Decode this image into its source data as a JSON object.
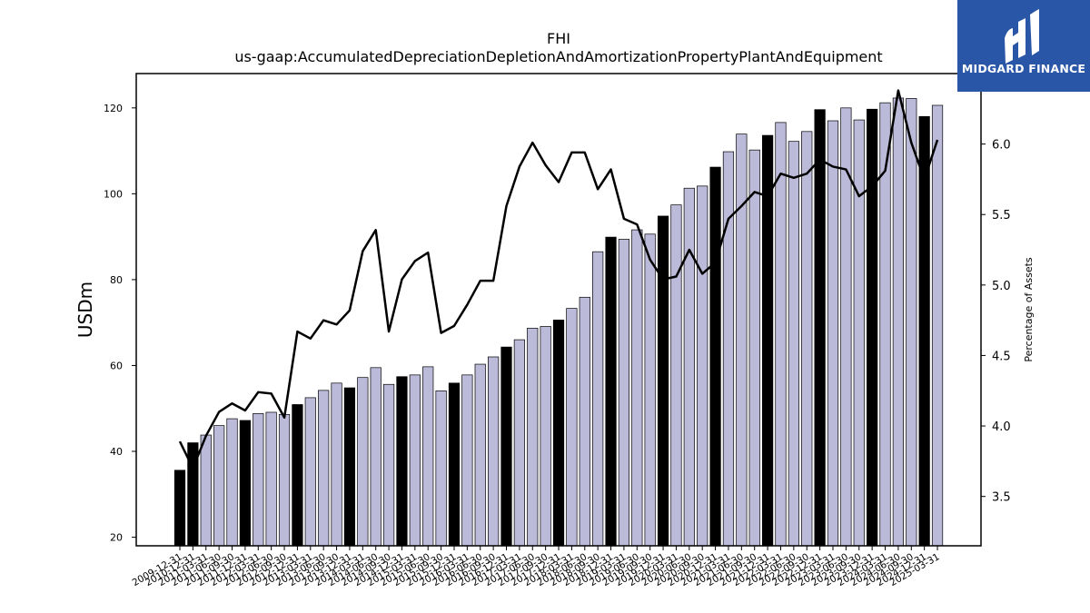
{
  "logo": {
    "text": "MIDGARD FINANCE"
  },
  "chart_data": {
    "type": "bar+line",
    "title": "FHI",
    "subtitle": "us-gaap:AccumulatedDepreciationDepletionAndAmortizationPropertyPlantAndEquipment",
    "ylabel": "USDm",
    "y2label": "Percentage of Assets",
    "ylim": [
      18,
      128
    ],
    "y2lim": [
      3.15,
      6.5
    ],
    "yticks": [
      20,
      40,
      60,
      80,
      100,
      120
    ],
    "y2ticks": [
      3.5,
      4.0,
      4.5,
      5.0,
      5.5,
      6.0
    ],
    "y2tick_labels": [
      "3.5",
      "4.0",
      "4.5",
      "5.0",
      "5.5",
      "6.0"
    ],
    "colors": {
      "bar_q4": "#000000",
      "bar_other": "#bcbad9",
      "line": "#000000"
    },
    "categories": [
      "2009-12-31",
      "2010-12-31",
      "2011-03-31",
      "2011-06-30",
      "2011-09-30",
      "2011-12-31",
      "2012-03-31",
      "2012-06-30",
      "2012-09-30",
      "2012-12-31",
      "2013-03-31",
      "2013-06-30",
      "2013-09-30",
      "2013-12-31",
      "2014-03-31",
      "2014-06-30",
      "2014-09-30",
      "2014-12-31",
      "2015-03-31",
      "2015-06-30",
      "2015-09-30",
      "2015-12-31",
      "2016-03-31",
      "2016-06-30",
      "2016-09-30",
      "2016-12-31",
      "2017-03-31",
      "2017-06-30",
      "2017-09-30",
      "2017-12-31",
      "2018-03-31",
      "2018-06-30",
      "2018-09-30",
      "2018-12-31",
      "2019-03-31",
      "2019-06-30",
      "2019-09-30",
      "2019-12-31",
      "2020-03-31",
      "2020-06-30",
      "2020-09-30",
      "2020-12-31",
      "2021-03-31",
      "2021-06-30",
      "2021-09-30",
      "2021-12-31",
      "2022-03-31",
      "2022-06-30",
      "2022-09-30",
      "2022-12-31",
      "2023-03-31",
      "2023-06-30",
      "2023-09-30",
      "2023-12-31",
      "2024-03-31",
      "2024-06-30",
      "2024-09-30",
      "2024-12-31",
      "2025-03-31"
    ],
    "series": [
      {
        "name": "",
        "type": "bar",
        "values": [
          35.6,
          42.0,
          43.8,
          46.0,
          47.6,
          47.2,
          48.8,
          49.1,
          48.6,
          50.9,
          52.5,
          54.2,
          55.9,
          54.8,
          57.2,
          59.5,
          55.6,
          57.4,
          57.8,
          59.7,
          54.1,
          55.9,
          57.8,
          60.3,
          62.0,
          64.3,
          66.0,
          68.7,
          69.1,
          70.6,
          73.3,
          75.9,
          86.5,
          89.9,
          89.4,
          91.6,
          90.6,
          94.8,
          97.4,
          101.3,
          101.8,
          106.2,
          109.8,
          113.9,
          110.2,
          113.6,
          116.6,
          112.2,
          114.5,
          119.6,
          117.0,
          120.0,
          117.2,
          119.7,
          121.2,
          122.3,
          122.2,
          118.0,
          120.6
        ]
      },
      {
        "name": "",
        "type": "line",
        "axis": "right",
        "values": [
          3.89,
          3.7,
          3.93,
          4.1,
          4.16,
          4.11,
          4.24,
          4.23,
          4.06,
          4.67,
          4.62,
          4.75,
          4.72,
          4.82,
          5.24,
          5.39,
          4.67,
          5.04,
          5.17,
          5.23,
          4.66,
          4.71,
          4.86,
          5.03,
          5.03,
          5.56,
          5.84,
          6.01,
          5.85,
          5.73,
          5.94,
          5.94,
          5.68,
          5.82,
          5.47,
          5.43,
          5.18,
          5.04,
          5.06,
          5.25,
          5.08,
          5.16,
          5.47,
          5.56,
          5.66,
          5.63,
          5.79,
          5.76,
          5.79,
          5.89,
          5.84,
          5.82,
          5.63,
          5.7,
          5.81,
          6.38,
          6.01,
          5.75,
          6.03
        ]
      }
    ]
  }
}
